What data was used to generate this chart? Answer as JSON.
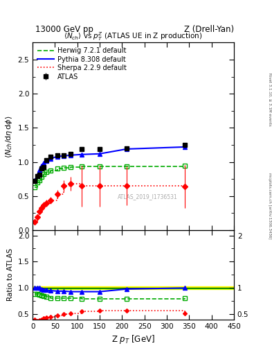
{
  "title_left": "13000 GeV pp",
  "title_right": "Z (Drell-Yan)",
  "main_title": "$\\langle N_{ch}\\rangle$ vs $p_T^Z$ (ATLAS UE in Z production)",
  "ylabel_main": "$\\langle N_{ch}/\\mathrm{d}\\eta\\,\\mathrm{d}\\phi\\rangle$",
  "ylabel_ratio": "Ratio to ATLAS",
  "xlabel": "Z $p_T$ [GeV]",
  "watermark": "ATLAS_2019_I1736531",
  "right_label": "Rivet 3.1.10, ≥ 3.1M events",
  "right_label2": "mcplots.cern.ch [arXiv:1306.3436]",
  "atlas_x": [
    5,
    10,
    15,
    20,
    25,
    30,
    40,
    55,
    70,
    85,
    110,
    150,
    210,
    340
  ],
  "atlas_y": [
    0.72,
    0.79,
    0.81,
    0.9,
    0.92,
    1.03,
    1.08,
    1.1,
    1.1,
    1.12,
    1.19,
    1.19,
    1.2,
    1.25
  ],
  "atlas_yerr": [
    0.02,
    0.02,
    0.02,
    0.02,
    0.02,
    0.02,
    0.02,
    0.02,
    0.02,
    0.02,
    0.02,
    0.02,
    0.02,
    0.03
  ],
  "herwig_x": [
    5,
    10,
    15,
    20,
    25,
    30,
    40,
    55,
    70,
    85,
    110,
    150,
    210,
    340
  ],
  "herwig_y": [
    0.63,
    0.7,
    0.73,
    0.78,
    0.82,
    0.85,
    0.87,
    0.9,
    0.91,
    0.92,
    0.93,
    0.93,
    0.93,
    0.95
  ],
  "pythia_x": [
    5,
    10,
    15,
    20,
    25,
    30,
    40,
    55,
    70,
    85,
    110,
    150,
    210,
    340
  ],
  "pythia_y": [
    0.73,
    0.8,
    0.88,
    0.95,
    0.99,
    1.02,
    1.05,
    1.08,
    1.09,
    1.1,
    1.11,
    1.12,
    1.19,
    1.22
  ],
  "sherpa_x": [
    5,
    10,
    15,
    20,
    25,
    30,
    40,
    55,
    70,
    85,
    110,
    150,
    210,
    340
  ],
  "sherpa_y": [
    0.12,
    0.19,
    0.27,
    0.32,
    0.37,
    0.4,
    0.44,
    0.53,
    0.65,
    0.68,
    0.65,
    0.65,
    0.65,
    0.64
  ],
  "sherpa_yerr": [
    0.02,
    0.03,
    0.04,
    0.04,
    0.05,
    0.05,
    0.05,
    0.06,
    0.08,
    0.1,
    0.3,
    0.3,
    0.28,
    0.32
  ],
  "herwig_ratio_y": [
    0.88,
    0.88,
    0.87,
    0.86,
    0.85,
    0.83,
    0.81,
    0.8,
    0.8,
    0.8,
    0.79,
    0.79,
    0.79,
    0.8
  ],
  "pythia_ratio_y": [
    1.01,
    1.01,
    1.0,
    0.98,
    0.97,
    0.96,
    0.95,
    0.94,
    0.94,
    0.93,
    0.93,
    0.93,
    0.98,
    1.0
  ],
  "sherpa_ratio_y": [
    0.4,
    0.37,
    0.38,
    0.4,
    0.42,
    0.44,
    0.45,
    0.47,
    0.5,
    0.52,
    0.56,
    0.57,
    0.57,
    0.52
  ],
  "atlas_band_low": 0.975,
  "atlas_band_high": 1.025,
  "xlim": [
    0,
    450
  ],
  "ylim_main": [
    0,
    2.75
  ],
  "ylim_ratio": [
    0.4,
    2.1
  ],
  "color_atlas": "#000000",
  "color_herwig": "#00aa00",
  "color_pythia": "#0000ff",
  "color_sherpa": "#ff0000",
  "color_band_yellow": "#ffff00",
  "color_band_green": "#00cc00"
}
